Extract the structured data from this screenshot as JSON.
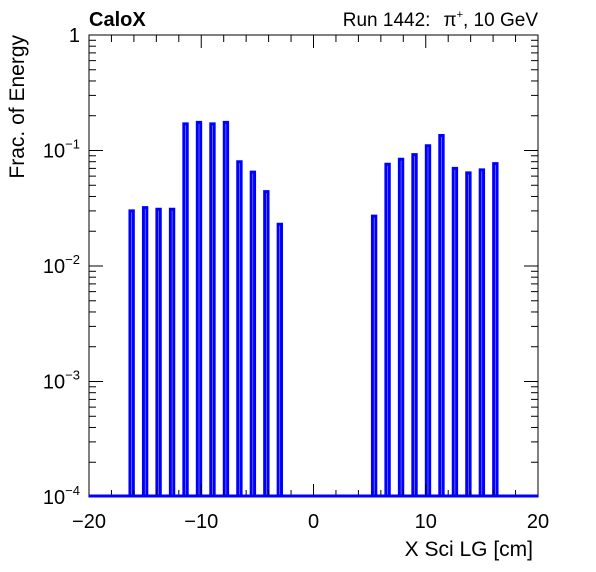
{
  "chart_data": {
    "type": "bar",
    "style": "histogram-outline",
    "header_left": "CaloX",
    "header_right_prefix": "Run 1442:",
    "header_particle": "π",
    "header_particle_sup": "+",
    "header_right_suffix": ", 10 GeV",
    "xlabel": "X Sci LG [cm]",
    "ylabel": "Frac. of Energy",
    "xlim": [
      -20,
      20
    ],
    "ylim": [
      0.0001,
      1
    ],
    "yscale": "log",
    "bin_width": 0.3,
    "series_color": "#0000ff",
    "x_ticks": [
      "−20",
      "−10",
      "0",
      "10",
      "20"
    ],
    "x_tick_values": [
      -20,
      -10,
      0,
      10,
      20
    ],
    "y_ticks": [
      {
        "base": "1",
        "exp": ""
      },
      {
        "base": "10",
        "exp": "−1"
      },
      {
        "base": "10",
        "exp": "−2"
      },
      {
        "base": "10",
        "exp": "−3"
      },
      {
        "base": "10",
        "exp": "−4"
      }
    ],
    "y_tick_values": [
      1,
      0.1,
      0.01,
      0.001,
      0.0001
    ],
    "bars": [
      {
        "x": -16.2,
        "y": 0.03
      },
      {
        "x": -15.0,
        "y": 0.032
      },
      {
        "x": -13.8,
        "y": 0.031
      },
      {
        "x": -12.6,
        "y": 0.031
      },
      {
        "x": -11.4,
        "y": 0.17
      },
      {
        "x": -10.2,
        "y": 0.175
      },
      {
        "x": -9.0,
        "y": 0.17
      },
      {
        "x": -7.8,
        "y": 0.175
      },
      {
        "x": -6.6,
        "y": 0.08
      },
      {
        "x": -5.4,
        "y": 0.065
      },
      {
        "x": -4.2,
        "y": 0.044
      },
      {
        "x": -3.0,
        "y": 0.023
      },
      {
        "x": 5.4,
        "y": 0.027
      },
      {
        "x": 6.6,
        "y": 0.076
      },
      {
        "x": 7.8,
        "y": 0.084
      },
      {
        "x": 9.0,
        "y": 0.092
      },
      {
        "x": 10.2,
        "y": 0.11
      },
      {
        "x": 11.4,
        "y": 0.135
      },
      {
        "x": 12.6,
        "y": 0.07
      },
      {
        "x": 13.8,
        "y": 0.064
      },
      {
        "x": 15.0,
        "y": 0.068
      },
      {
        "x": 16.2,
        "y": 0.077
      }
    ]
  }
}
